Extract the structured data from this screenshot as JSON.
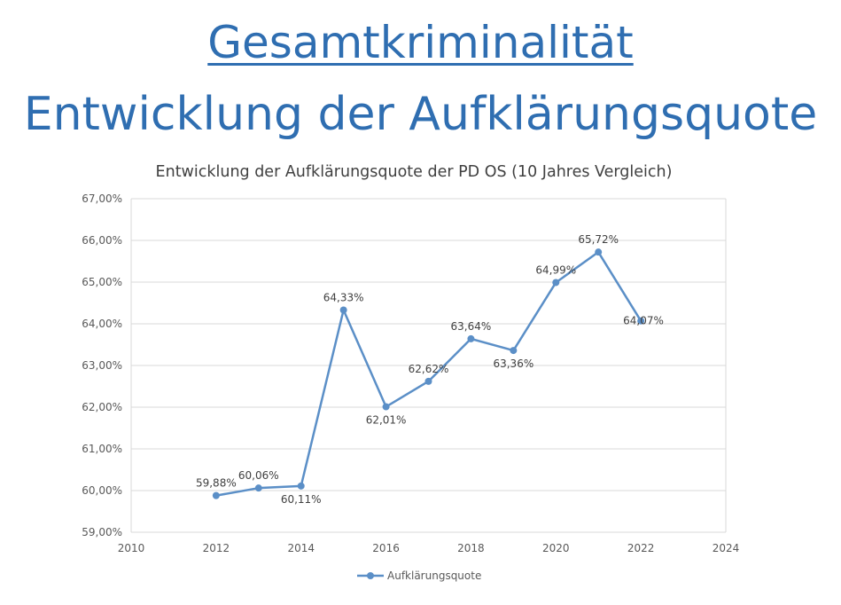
{
  "slide": {
    "title_line1": "Gesamtkriminalität",
    "title_line2": "Entwicklung der Aufklärungsquote",
    "accent_color": "#2f6eb1"
  },
  "chart_data": {
    "type": "line",
    "title": "Entwicklung der Aufklärungsquote der PD OS (10 Jahres Vergleich)",
    "xlabel": "",
    "ylabel": "",
    "xlim": [
      2010,
      2024
    ],
    "xticks": [
      "2010",
      "2012",
      "2014",
      "2016",
      "2018",
      "2020",
      "2022",
      "2024"
    ],
    "ylim": [
      59,
      67
    ],
    "yticks": [
      "59,00%",
      "60,00%",
      "61,00%",
      "62,00%",
      "63,00%",
      "64,00%",
      "65,00%",
      "66,00%",
      "67,00%"
    ],
    "grid": true,
    "legend_position": "bottom",
    "series": [
      {
        "name": "Aufklärungsquote",
        "color": "#5b8fc7",
        "x": [
          2012,
          2013,
          2014,
          2015,
          2016,
          2017,
          2018,
          2019,
          2020,
          2021,
          2022
        ],
        "y": [
          59.88,
          60.06,
          60.11,
          64.33,
          62.01,
          62.62,
          63.64,
          63.36,
          64.99,
          65.72,
          64.07
        ],
        "labels": [
          "59,88%",
          "60,06%",
          "60,11%",
          "64,33%",
          "62,01%",
          "62,62%",
          "63,64%",
          "63,36%",
          "64,99%",
          "65,72%",
          "64,07%"
        ]
      }
    ]
  }
}
